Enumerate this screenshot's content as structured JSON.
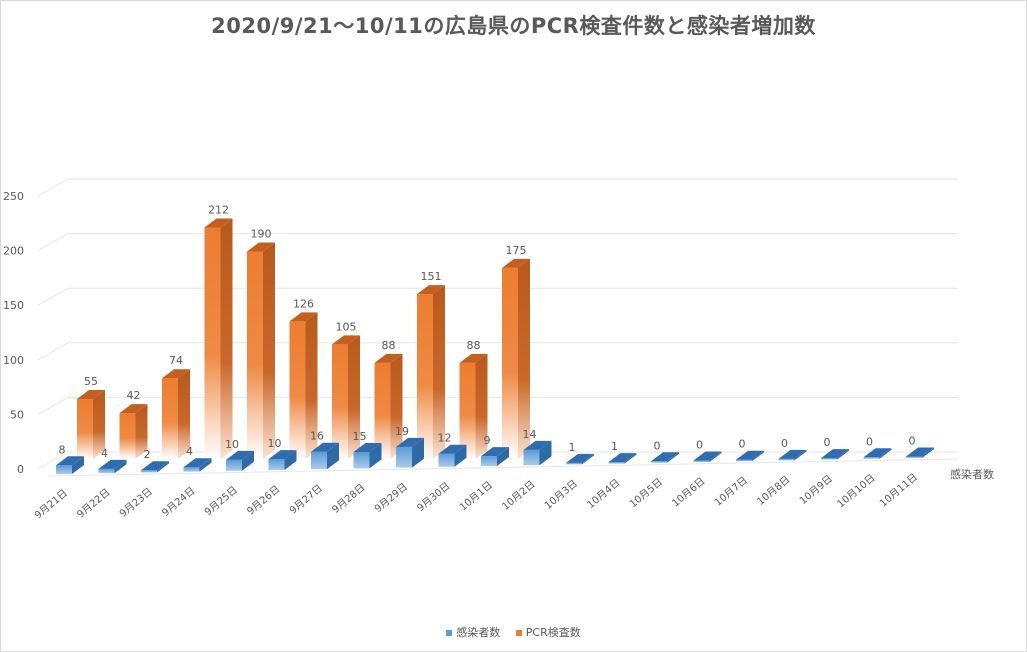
{
  "chart_data": {
    "type": "bar",
    "title": "2020/9/21～10/11の広島県のPCR検査件数と感染者増加数",
    "categories": [
      "9月21日",
      "9月22日",
      "9月23日",
      "9月24日",
      "9月25日",
      "9月26日",
      "9月27日",
      "9月28日",
      "9月29日",
      "9月30日",
      "10月1日",
      "10月2日",
      "10月3日",
      "10月4日",
      "10月5日",
      "10月6日",
      "10月7日",
      "10月8日",
      "10月9日",
      "10月10日",
      "10月11日"
    ],
    "series": [
      {
        "name": "感染者数",
        "values": [
          8,
          4,
          2,
          4,
          10,
          10,
          16,
          15,
          19,
          12,
          9,
          14,
          1,
          1,
          0,
          0,
          0,
          0,
          0,
          0,
          0
        ],
        "color": "#5b9bd5"
      },
      {
        "name": "PCR検査数",
        "values": [
          55,
          42,
          74,
          212,
          190,
          126,
          105,
          88,
          151,
          88,
          175,
          null,
          null,
          null,
          null,
          null,
          null,
          null,
          null,
          null,
          null
        ],
        "color": "#ed7d31"
      }
    ],
    "depth_axis_label": "感染者数",
    "ylim": [
      0,
      250
    ],
    "yticks": [
      0,
      50,
      100,
      150,
      200,
      250
    ],
    "grid": true,
    "legend": "bottom",
    "style": "3d-column"
  },
  "legend": {
    "items": [
      {
        "label": "感染者数",
        "color": "#5b9bd5"
      },
      {
        "label": "PCR検査数",
        "color": "#ed7d31"
      }
    ]
  }
}
